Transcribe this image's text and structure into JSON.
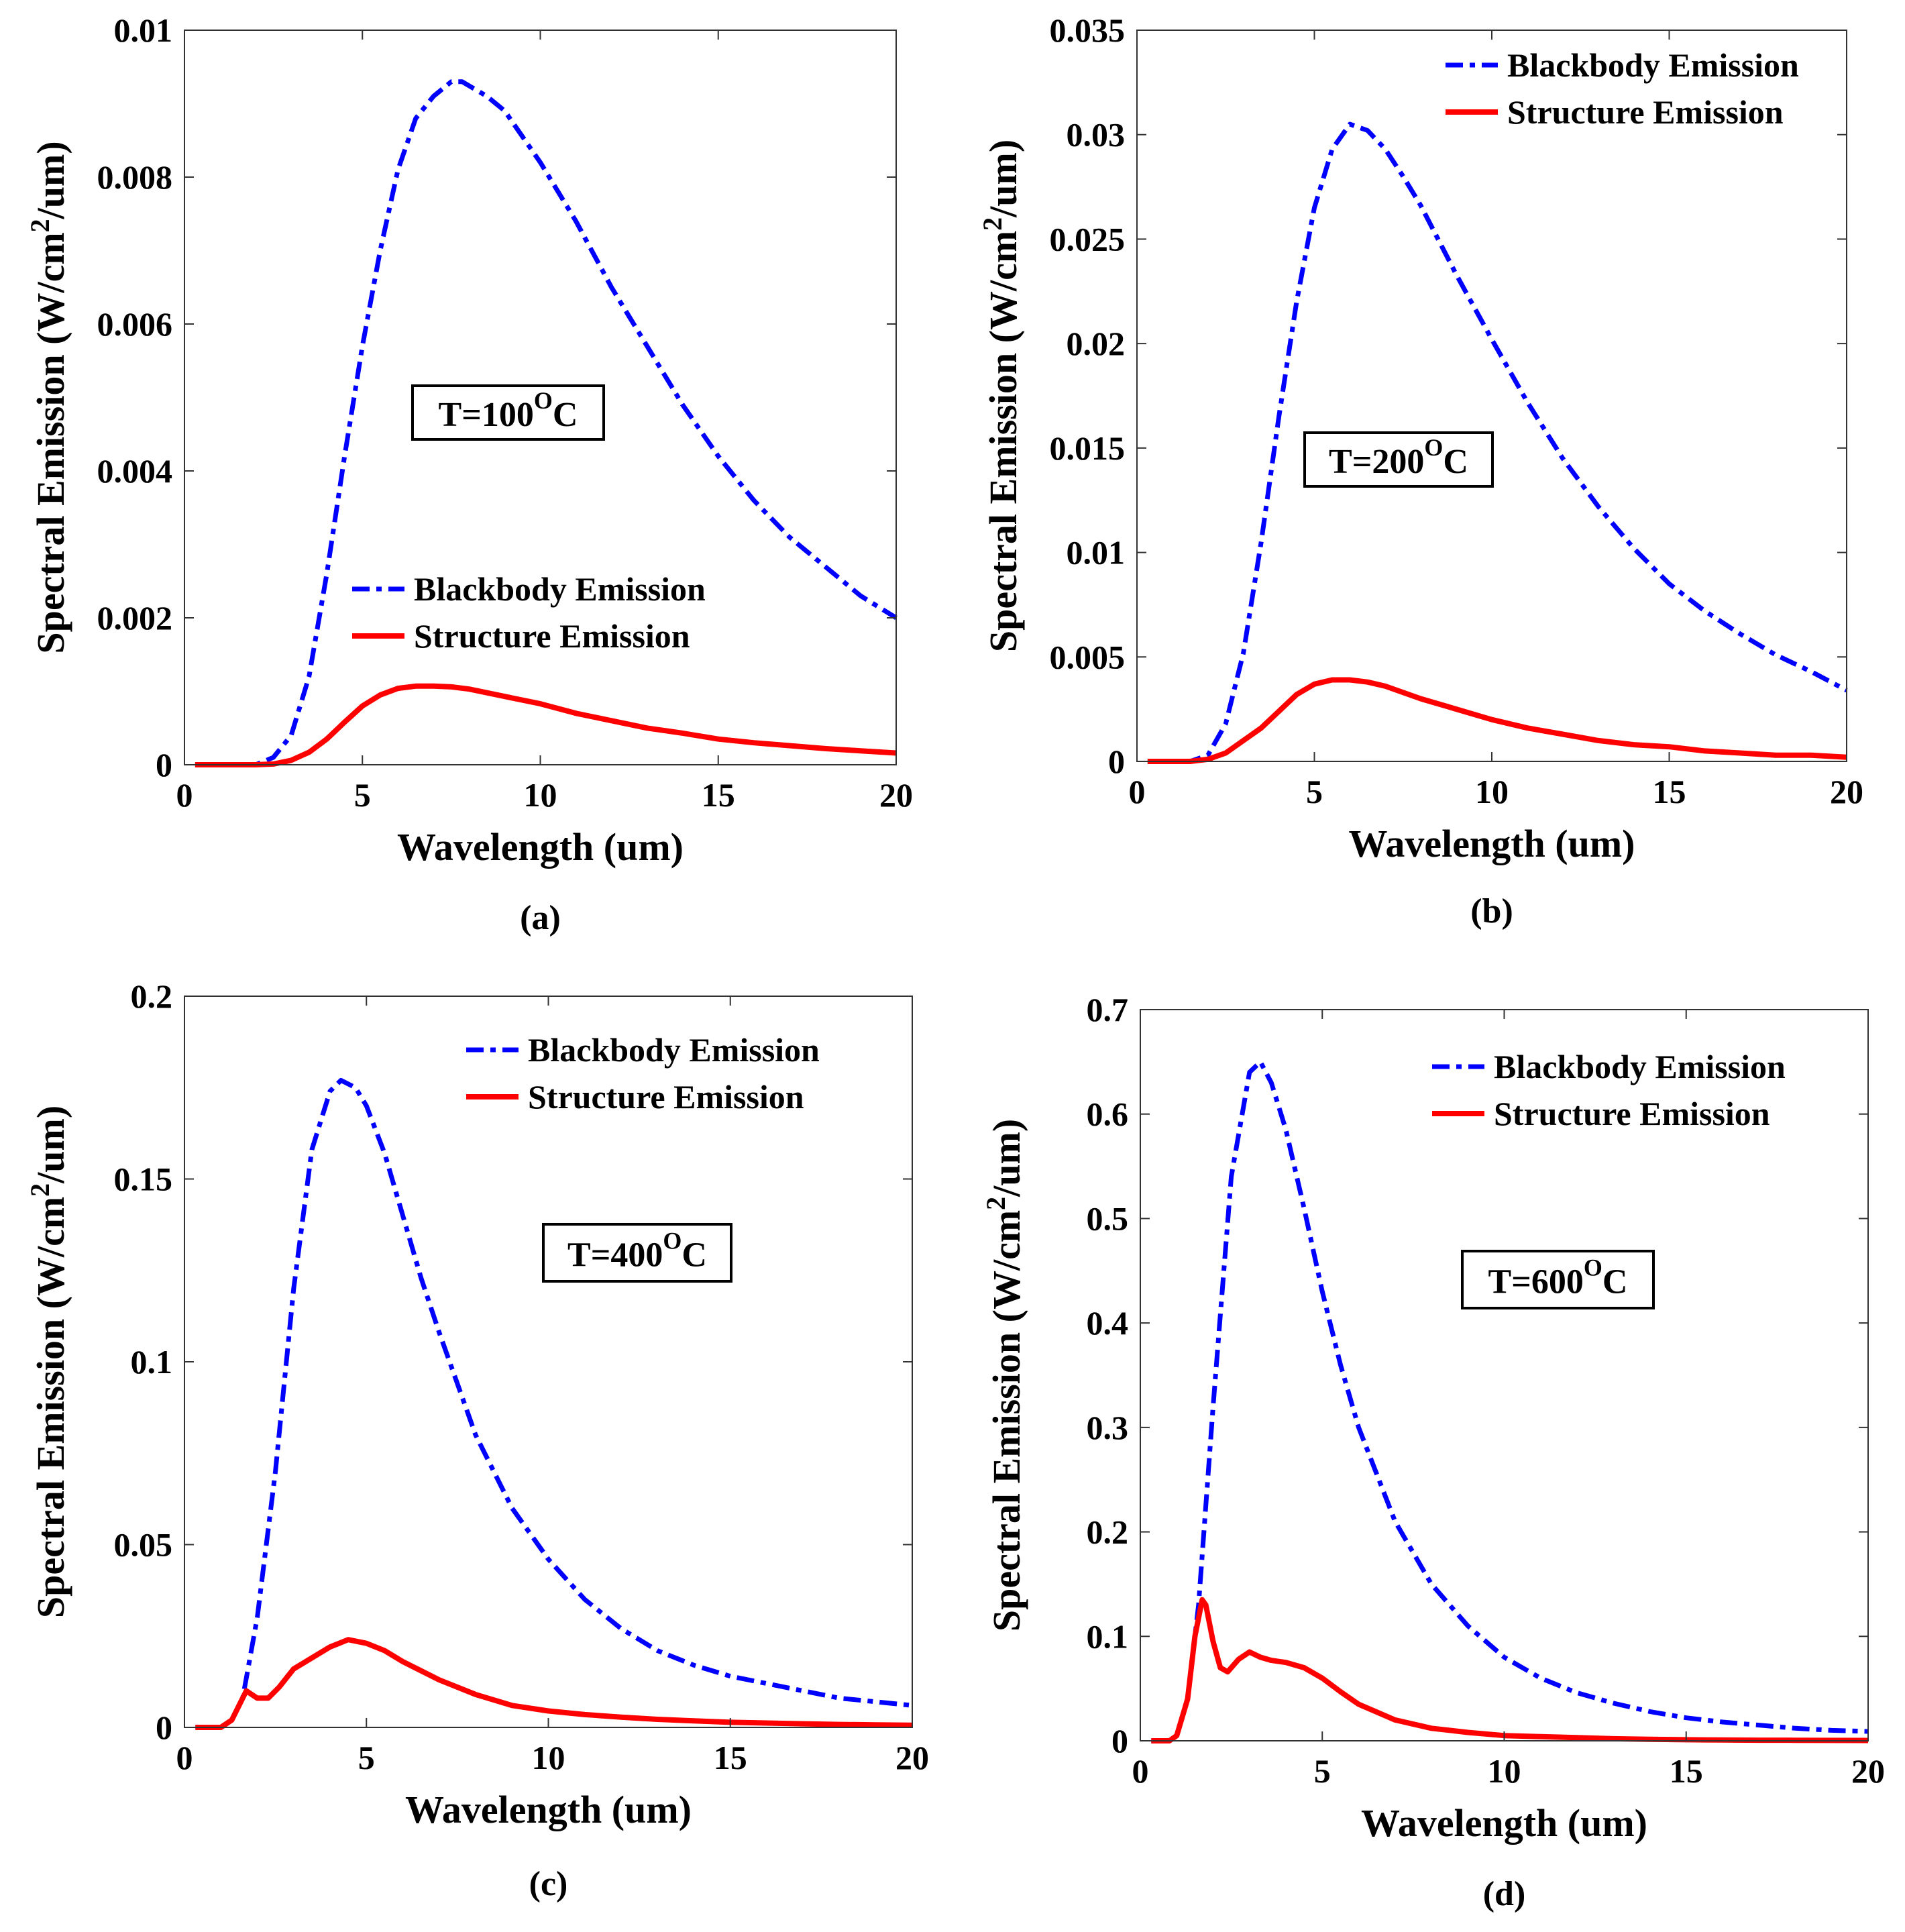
{
  "colors": {
    "blackbody": "#0000ff",
    "structure": "#ff0000"
  },
  "chart_data": [
    {
      "type": "line",
      "panel_label": "(a)",
      "xlabel": "Wavelength (um)",
      "ylabel_main": "Spectral Emission (W/cm",
      "ylabel_sup": "2",
      "ylabel_tail": "/um)",
      "xlim": [
        0,
        20
      ],
      "ylim": [
        0,
        0.01
      ],
      "xticks": [
        0,
        5,
        10,
        15,
        20
      ],
      "xtick_labels": [
        "0",
        "5",
        "10",
        "15",
        "20"
      ],
      "yticks": [
        0,
        0.002,
        0.004,
        0.006,
        0.008,
        0.01
      ],
      "ytick_labels": [
        "0",
        "0.002",
        "0.004",
        "0.006",
        "0.008",
        "0.01"
      ],
      "temperature": {
        "main": "T=100",
        "sup": "O",
        "unit": "C"
      },
      "legend": [
        "Blackbody Emission",
        "Structure Emission"
      ],
      "series": [
        {
          "name": "Blackbody Emission",
          "style": "dashdot",
          "x": [
            0.3,
            1,
            2,
            2.5,
            3,
            3.5,
            4,
            4.5,
            5,
            5.5,
            6,
            6.5,
            7,
            7.5,
            7.8,
            8.5,
            9,
            10,
            11,
            12,
            13,
            14,
            15,
            16,
            17,
            18,
            19,
            20
          ],
          "y": [
            0,
            0,
            0,
            0.0001,
            0.0004,
            0.0012,
            0.0026,
            0.0042,
            0.0057,
            0.007,
            0.0081,
            0.0088,
            0.0091,
            0.0093,
            0.0093,
            0.0091,
            0.0089,
            0.0082,
            0.0074,
            0.0065,
            0.0057,
            0.0049,
            0.0042,
            0.0036,
            0.0031,
            0.0027,
            0.0023,
            0.002
          ]
        },
        {
          "name": "Structure Emission",
          "style": "solid",
          "x": [
            0.3,
            1,
            2,
            2.5,
            3,
            3.5,
            4,
            4.5,
            5,
            5.5,
            6,
            6.5,
            7,
            7.5,
            8,
            9,
            10,
            11,
            12,
            13,
            14,
            15,
            16,
            17,
            18,
            19,
            20
          ],
          "y": [
            0,
            0,
            0,
            1e-05,
            6e-05,
            0.00017,
            0.00035,
            0.00058,
            0.0008,
            0.00095,
            0.00104,
            0.00107,
            0.00107,
            0.00106,
            0.00103,
            0.00093,
            0.00083,
            0.0007,
            0.0006,
            0.0005,
            0.00043,
            0.00035,
            0.0003,
            0.00026,
            0.00022,
            0.00019,
            0.00016
          ]
        }
      ]
    },
    {
      "type": "line",
      "panel_label": "(b)",
      "xlabel": "Wavelength (um)",
      "ylabel_main": "Spectral Emission (W/cm",
      "ylabel_sup": "2",
      "ylabel_tail": "/um)",
      "xlim": [
        0,
        20
      ],
      "ylim": [
        0,
        0.035
      ],
      "xticks": [
        0,
        5,
        10,
        15,
        20
      ],
      "xtick_labels": [
        "0",
        "5",
        "10",
        "15",
        "20"
      ],
      "yticks": [
        0,
        0.005,
        0.01,
        0.015,
        0.02,
        0.025,
        0.03,
        0.035
      ],
      "ytick_labels": [
        "0",
        "0.005",
        "0.01",
        "0.015",
        "0.02",
        "0.025",
        "0.03",
        "0.035"
      ],
      "temperature": {
        "main": "T=200",
        "sup": "O",
        "unit": "C"
      },
      "legend": [
        "Blackbody Emission",
        "Structure Emission"
      ],
      "series": [
        {
          "name": "Blackbody Emission",
          "style": "dashdot",
          "x": [
            0.3,
            1,
            1.5,
            2,
            2.5,
            3,
            3.5,
            4,
            4.5,
            5,
            5.5,
            6,
            6.5,
            7,
            7.5,
            8,
            9,
            10,
            11,
            12,
            13,
            14,
            15,
            16,
            17,
            18,
            19,
            20
          ],
          "y": [
            0,
            0,
            0,
            0.0003,
            0.0018,
            0.0052,
            0.0105,
            0.0165,
            0.022,
            0.0265,
            0.0293,
            0.0305,
            0.0302,
            0.0293,
            0.028,
            0.0266,
            0.0233,
            0.0202,
            0.0172,
            0.0145,
            0.0122,
            0.0102,
            0.0085,
            0.0072,
            0.0061,
            0.0051,
            0.0043,
            0.0034
          ]
        },
        {
          "name": "Structure Emission",
          "style": "solid",
          "x": [
            0.3,
            1,
            1.5,
            2,
            2.5,
            3,
            3.5,
            4,
            4.5,
            5,
            5.5,
            6,
            6.5,
            7,
            8,
            9,
            10,
            11,
            12,
            13,
            14,
            15,
            16,
            17,
            18,
            19,
            20
          ],
          "y": [
            0,
            0,
            0,
            0.0001,
            0.0004,
            0.001,
            0.0016,
            0.0024,
            0.0032,
            0.0037,
            0.0039,
            0.0039,
            0.0038,
            0.0036,
            0.003,
            0.0025,
            0.002,
            0.0016,
            0.0013,
            0.001,
            0.0008,
            0.0007,
            0.0005,
            0.0004,
            0.0003,
            0.0003,
            0.0002
          ]
        }
      ]
    },
    {
      "type": "line",
      "panel_label": "(c)",
      "xlabel": "Wavelength (um)",
      "ylabel_main": "Spectral Emission (W/cm",
      "ylabel_sup": "2",
      "ylabel_tail": "/um)",
      "xlim": [
        0,
        20
      ],
      "ylim": [
        0,
        0.2
      ],
      "xticks": [
        0,
        5,
        10,
        15,
        20
      ],
      "xtick_labels": [
        "0",
        "5",
        "10",
        "15",
        "20"
      ],
      "yticks": [
        0,
        0.05,
        0.1,
        0.15,
        0.2
      ],
      "ytick_labels": [
        "0",
        "0.05",
        "0.1",
        "0.15",
        "0.2"
      ],
      "temperature": {
        "main": "T=400",
        "sup": "O",
        "unit": "C"
      },
      "legend": [
        "Blackbody Emission",
        "Structure Emission"
      ],
      "series": [
        {
          "name": "Blackbody Emission",
          "style": "dashdot",
          "x": [
            0.3,
            1,
            1.3,
            1.6,
            2,
            2.5,
            3,
            3.5,
            4,
            4.3,
            4.7,
            5,
            5.5,
            6,
            6.5,
            7,
            8,
            9,
            10,
            11,
            12,
            13,
            14,
            15,
            16,
            17,
            18,
            19,
            20
          ],
          "y": [
            0,
            0,
            0.002,
            0.008,
            0.03,
            0.07,
            0.12,
            0.158,
            0.174,
            0.177,
            0.175,
            0.17,
            0.157,
            0.14,
            0.123,
            0.108,
            0.08,
            0.06,
            0.046,
            0.035,
            0.027,
            0.021,
            0.017,
            0.014,
            0.012,
            0.01,
            0.008,
            0.007,
            0.006
          ]
        },
        {
          "name": "Structure Emission",
          "style": "solid",
          "x": [
            0.3,
            1,
            1.3,
            1.7,
            2,
            2.3,
            2.6,
            3,
            3.5,
            4,
            4.5,
            5,
            5.5,
            6,
            7,
            8,
            9,
            10,
            11,
            12,
            13,
            14,
            15,
            16,
            17,
            18,
            19,
            20
          ],
          "y": [
            0,
            0,
            0.002,
            0.01,
            0.008,
            0.008,
            0.011,
            0.016,
            0.019,
            0.022,
            0.024,
            0.023,
            0.021,
            0.018,
            0.013,
            0.009,
            0.006,
            0.0045,
            0.0035,
            0.0028,
            0.0022,
            0.0018,
            0.0014,
            0.0012,
            0.001,
            0.0008,
            0.0007,
            0.0006
          ]
        }
      ]
    },
    {
      "type": "line",
      "panel_label": "(d)",
      "xlabel": "Wavelength (um)",
      "ylabel_main": "Spectral Emission (W/cm",
      "ylabel_sup": "2",
      "ylabel_tail": "/um)",
      "xlim": [
        0,
        20
      ],
      "ylim": [
        0,
        0.7
      ],
      "xticks": [
        0,
        5,
        10,
        15,
        20
      ],
      "xtick_labels": [
        "0",
        "5",
        "10",
        "15",
        "20"
      ],
      "yticks": [
        0,
        0.1,
        0.2,
        0.3,
        0.4,
        0.5,
        0.6,
        0.7
      ],
      "ytick_labels": [
        "0",
        "0.1",
        "0.2",
        "0.3",
        "0.4",
        "0.5",
        "0.6",
        "0.7"
      ],
      "temperature": {
        "main": "T=600",
        "sup": "O",
        "unit": "C"
      },
      "legend": [
        "Blackbody Emission",
        "Structure Emission"
      ],
      "series": [
        {
          "name": "Blackbody Emission",
          "style": "dashdot",
          "x": [
            0.3,
            0.8,
            1,
            1.3,
            1.6,
            2,
            2.5,
            3,
            3.3,
            3.6,
            4,
            4.5,
            5,
            5.5,
            6,
            7,
            8,
            9,
            10,
            11,
            12,
            13,
            14,
            15,
            16,
            17,
            18,
            19,
            20
          ],
          "y": [
            0,
            0,
            0.005,
            0.04,
            0.13,
            0.32,
            0.54,
            0.64,
            0.65,
            0.63,
            0.585,
            0.51,
            0.43,
            0.36,
            0.3,
            0.21,
            0.15,
            0.11,
            0.08,
            0.06,
            0.046,
            0.036,
            0.028,
            0.022,
            0.018,
            0.015,
            0.012,
            0.01,
            0.009
          ]
        },
        {
          "name": "Structure Emission",
          "style": "solid",
          "x": [
            0.3,
            0.8,
            1,
            1.3,
            1.5,
            1.7,
            1.8,
            2,
            2.2,
            2.4,
            2.7,
            3,
            3.3,
            3.6,
            4,
            4.5,
            5,
            5.5,
            6,
            7,
            8,
            9,
            10,
            11,
            12,
            13,
            14,
            15,
            16,
            17,
            18,
            19,
            20
          ],
          "y": [
            0,
            0,
            0.005,
            0.04,
            0.1,
            0.135,
            0.13,
            0.095,
            0.07,
            0.066,
            0.078,
            0.085,
            0.08,
            0.077,
            0.075,
            0.07,
            0.06,
            0.047,
            0.035,
            0.02,
            0.012,
            0.008,
            0.005,
            0.004,
            0.003,
            0.002,
            0.0015,
            0.001,
            0.0008,
            0.0006,
            0.0005,
            0.0004,
            0.0003
          ]
        }
      ]
    }
  ]
}
